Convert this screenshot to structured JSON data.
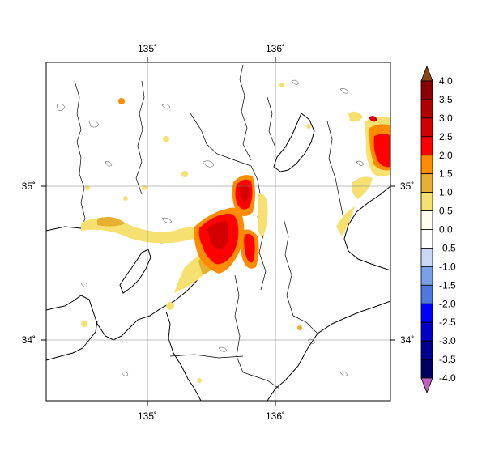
{
  "map": {
    "lon_labels": [
      "135˚",
      "136˚"
    ],
    "lat_labels": [
      "35˚",
      "34˚"
    ]
  },
  "colorbar": {
    "labels": [
      "4.0",
      "3.5",
      "3.0",
      "2.5",
      "2.0",
      "1.5",
      "1.0",
      "0.5",
      "0.0",
      "-0.5",
      "-1.0",
      "-1.5",
      "-2.0",
      "-2.5",
      "-3.0",
      "-3.5",
      "-4.0"
    ],
    "colors": [
      "#8b0000",
      "#b20000",
      "#d40000",
      "#ff0000",
      "#ff8c00",
      "#e8b030",
      "#f5e070",
      "#fffdf0",
      "#ffffff",
      "#c8d8f5",
      "#7aa0e8",
      "#4c78e0",
      "#0000ff",
      "#0000c8",
      "#000090",
      "#000060"
    ],
    "top_arrow_color": "#8b4513",
    "bottom_arrow_color": "#c060c0"
  },
  "colors": {
    "frame": "#000000",
    "coast": "#000000",
    "grid": "#808080",
    "background": "#ffffff"
  }
}
